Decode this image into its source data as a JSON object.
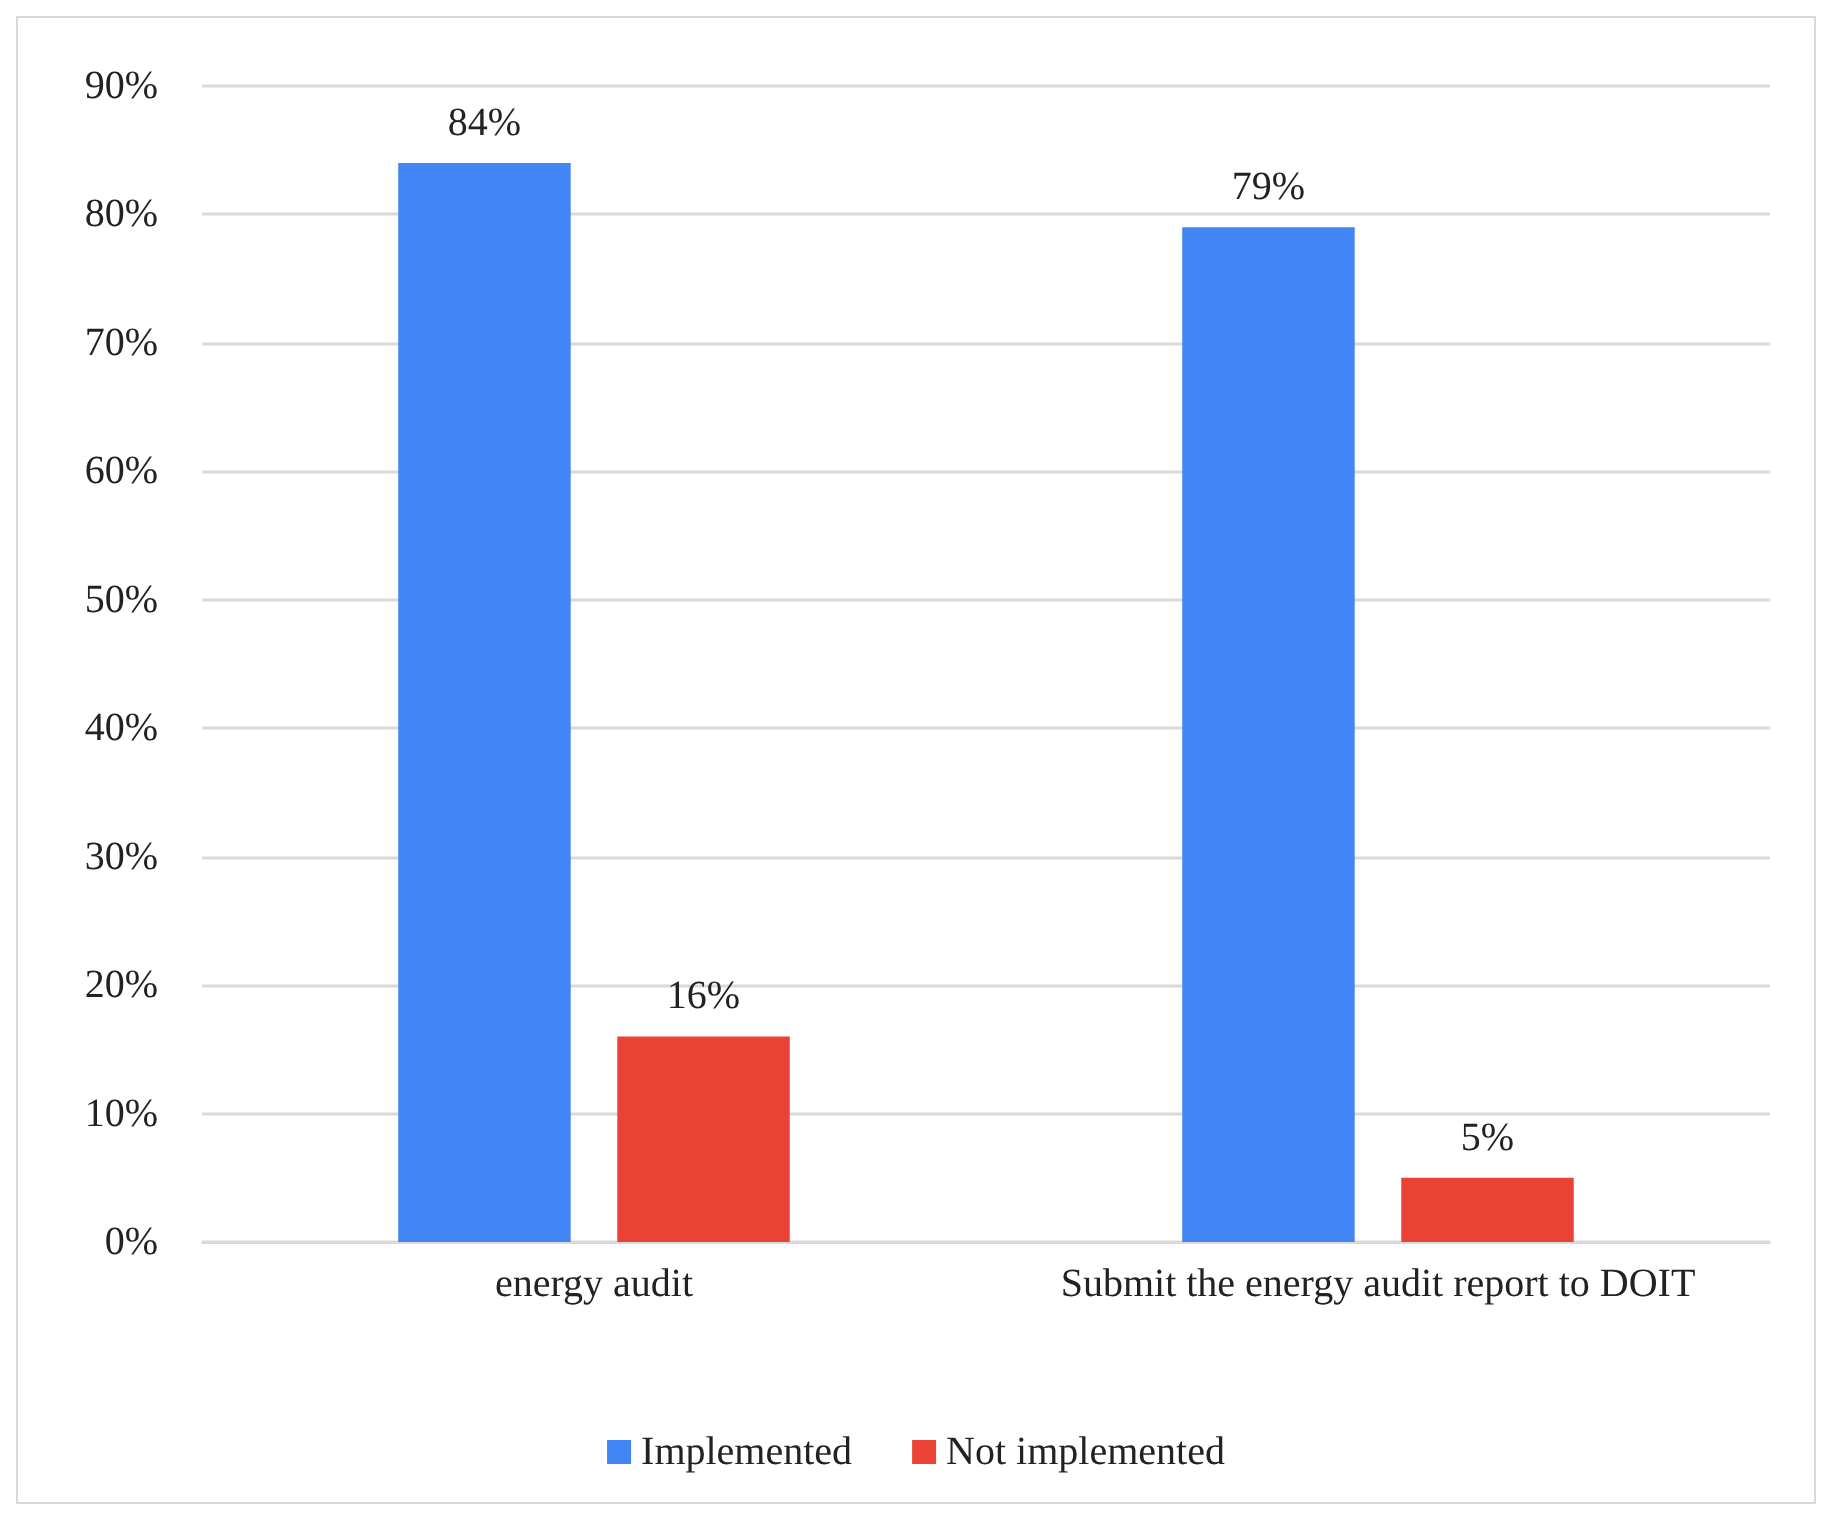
{
  "chart_data": {
    "type": "bar",
    "categories": [
      "energy audit",
      "Submit the energy audit report to DOIT"
    ],
    "series": [
      {
        "name": "Implemented",
        "color": "#4285f4",
        "values": [
          84,
          79
        ],
        "value_labels": [
          "84%",
          "79%"
        ]
      },
      {
        "name": "Not implemented",
        "color": "#ea4335",
        "values": [
          16,
          5
        ],
        "value_labels": [
          "16%",
          "5%"
        ]
      }
    ],
    "ylim": [
      0,
      90
    ],
    "yticks": [
      {
        "value": 0,
        "label": "0%"
      },
      {
        "value": 10,
        "label": "10%"
      },
      {
        "value": 20,
        "label": "20%"
      },
      {
        "value": 30,
        "label": "30%"
      },
      {
        "value": 40,
        "label": "40%"
      },
      {
        "value": 50,
        "label": "50%"
      },
      {
        "value": 60,
        "label": "60%"
      },
      {
        "value": 70,
        "label": "70%"
      },
      {
        "value": 80,
        "label": "80%"
      },
      {
        "value": 90,
        "label": "90%"
      }
    ],
    "grid": "y",
    "legend": "bottom"
  }
}
